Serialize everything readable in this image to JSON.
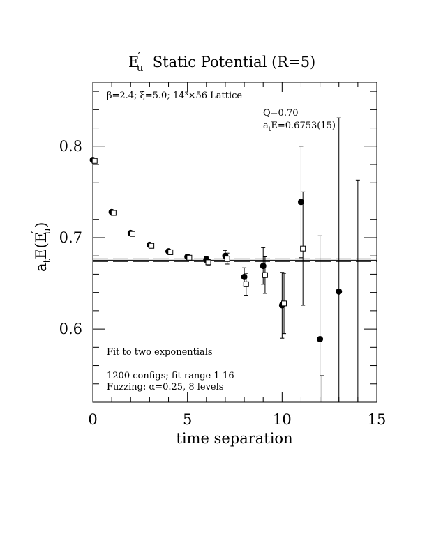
{
  "chart_data": {
    "type": "scatter",
    "title": {
      "main": "E",
      "prime": "′",
      "sub": "u",
      "rest": "  Static Potential (R=5)"
    },
    "xlabel": "time separation",
    "ylabel": {
      "a": "a",
      "t": "t",
      "E": "E(E",
      "prime": "′",
      "u": "u",
      "close": ")"
    },
    "xlim": [
      0,
      15
    ],
    "ylim": [
      0.52,
      0.87
    ],
    "xticks": [
      0,
      5,
      10,
      15
    ],
    "xtick_labels": [
      "0",
      "5",
      "10",
      "15"
    ],
    "yticks": [
      0.6,
      0.7,
      0.8
    ],
    "ytick_labels": [
      "0.6",
      "0.7",
      "0.8"
    ],
    "grid": false,
    "annotations": {
      "lattice": "β=2.4; ξ=5.0; 14³×56 Lattice",
      "q": "Q=0.70",
      "fit_prefix": "a",
      "fit_sub": "t",
      "fit_value": "E=0.6753(15)",
      "fit_type": "Fit to two exponentials",
      "configs": "1200 configs; fit range 1-16",
      "fuzzing": "Fuzzing: α=0.25, 8 levels"
    },
    "fit": {
      "value": 0.6753,
      "error": 0.0015,
      "xrange": [
        0,
        15
      ]
    },
    "series": [
      {
        "marker": "filled-circle",
        "points": [
          {
            "x": 0,
            "y": 0.785,
            "err": 0.002
          },
          {
            "x": 1,
            "y": 0.728,
            "err": 0.002
          },
          {
            "x": 2,
            "y": 0.705,
            "err": 0.002
          },
          {
            "x": 3,
            "y": 0.692,
            "err": 0.002
          },
          {
            "x": 4,
            "y": 0.685,
            "err": 0.002
          },
          {
            "x": 5,
            "y": 0.679,
            "err": 0.002
          },
          {
            "x": 6,
            "y": 0.676,
            "err": 0.003
          },
          {
            "x": 7,
            "y": 0.68,
            "err": 0.006
          },
          {
            "x": 8,
            "y": 0.657,
            "err": 0.01
          },
          {
            "x": 9,
            "y": 0.669,
            "err": 0.02
          },
          {
            "x": 10,
            "y": 0.626,
            "err": 0.036
          },
          {
            "x": 11,
            "y": 0.739,
            "err": 0.061
          },
          {
            "x": 12,
            "y": 0.589,
            "err": 0.113
          },
          {
            "x": 13,
            "y": 0.641,
            "err": 0.19
          },
          {
            "x": 14,
            "y": null,
            "err_low": 0.52,
            "err_high": 0.763
          }
        ]
      },
      {
        "marker": "open-square",
        "points": [
          {
            "x": 0.1,
            "y": 0.784,
            "err": 0.002
          },
          {
            "x": 1.1,
            "y": 0.727,
            "err": 0.002
          },
          {
            "x": 2.1,
            "y": 0.704,
            "err": 0.002
          },
          {
            "x": 3.1,
            "y": 0.691,
            "err": 0.002
          },
          {
            "x": 4.1,
            "y": 0.684,
            "err": 0.002
          },
          {
            "x": 5.1,
            "y": 0.678,
            "err": 0.002
          },
          {
            "x": 6.1,
            "y": 0.673,
            "err": 0.003
          },
          {
            "x": 7.1,
            "y": 0.677,
            "err": 0.006
          },
          {
            "x": 8.1,
            "y": 0.649,
            "err": 0.012
          },
          {
            "x": 9.1,
            "y": 0.659,
            "err": 0.02
          },
          {
            "x": 10.1,
            "y": 0.628,
            "err": 0.033
          },
          {
            "x": 11.1,
            "y": 0.688,
            "err": 0.062
          },
          {
            "x": 12.1,
            "y": null,
            "err_low": 0.52,
            "err_high": 0.549
          }
        ]
      }
    ]
  }
}
